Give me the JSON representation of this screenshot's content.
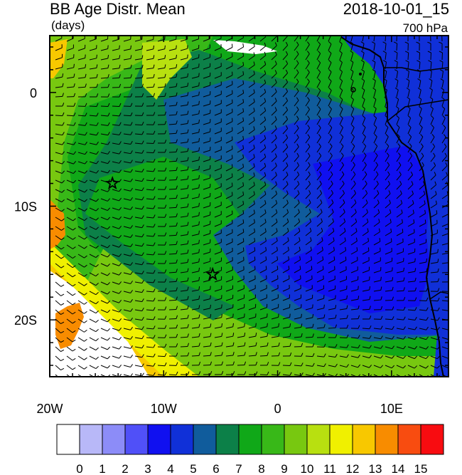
{
  "header": {
    "title": "BB Age Distr. Mean",
    "units": "(days)",
    "datetime": "2018-10-01_15",
    "level": "700 hPa"
  },
  "map": {
    "lon_range": [
      -20,
      15
    ],
    "lat_range": [
      -25,
      5
    ],
    "x_tick_labels": [
      "20W",
      "10W",
      "0",
      "10E"
    ],
    "y_tick_labels": [
      "0",
      "10S",
      "20S"
    ],
    "markers": [
      {
        "name": "star",
        "lon": -14.5,
        "lat": -8
      },
      {
        "name": "star",
        "lon": -5.7,
        "lat": -16
      }
    ],
    "wind_barbs": true,
    "coastline": "West Africa"
  },
  "colorbar": {
    "labels": [
      "0",
      "1",
      "2",
      "3",
      "4",
      "5",
      "6",
      "7",
      "8",
      "9",
      "10",
      "11",
      "12",
      "13",
      "14",
      "15"
    ],
    "colors": [
      "#ffffff",
      "#b8b8f8",
      "#8c8cf8",
      "#5050f8",
      "#1010f0",
      "#1030d8",
      "#105c9c",
      "#0c8048",
      "#10a818",
      "#38b818",
      "#78c810",
      "#b8e010",
      "#f0f000",
      "#f8c800",
      "#f88c00",
      "#f84c10",
      "#f80c10"
    ]
  }
}
